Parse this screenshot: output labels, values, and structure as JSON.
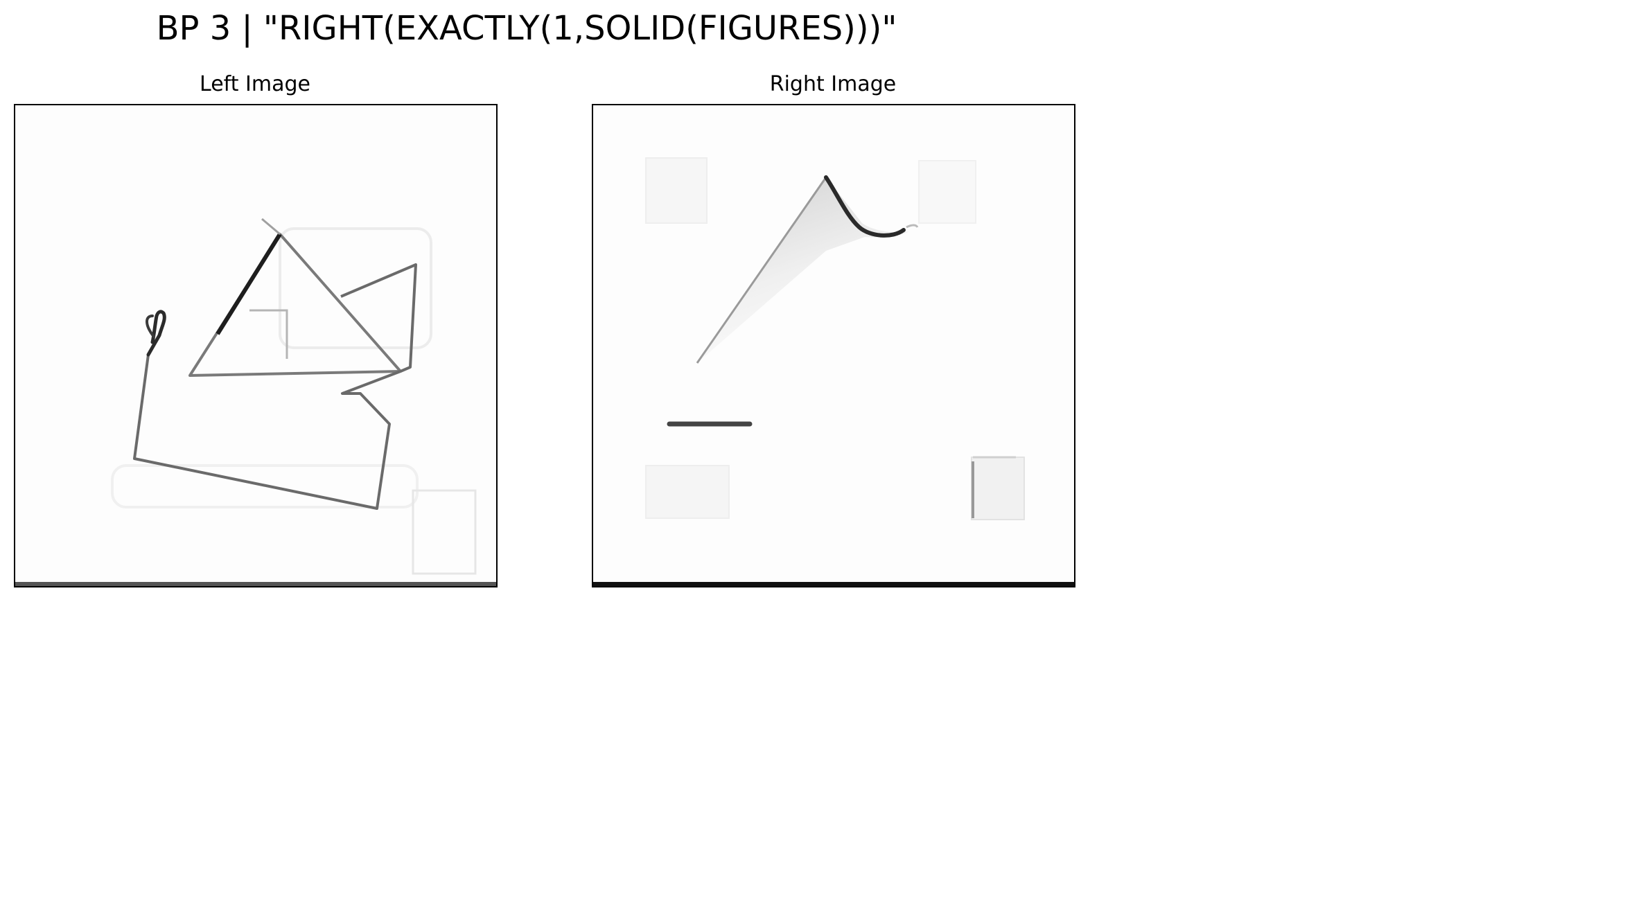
{
  "figure": {
    "title": "BP 3 | \"RIGHT(EXACTLY(1,SOLID(FIGURES)))\""
  },
  "panels": {
    "left": {
      "title": "Left Image"
    },
    "right": {
      "title": "Right Image"
    }
  },
  "colors": {
    "background": "#ffffff",
    "panel_background": "#fdfdfd",
    "stroke_dark": "#333333",
    "stroke_light": "#9a9a9a",
    "frame": "#000000"
  }
}
